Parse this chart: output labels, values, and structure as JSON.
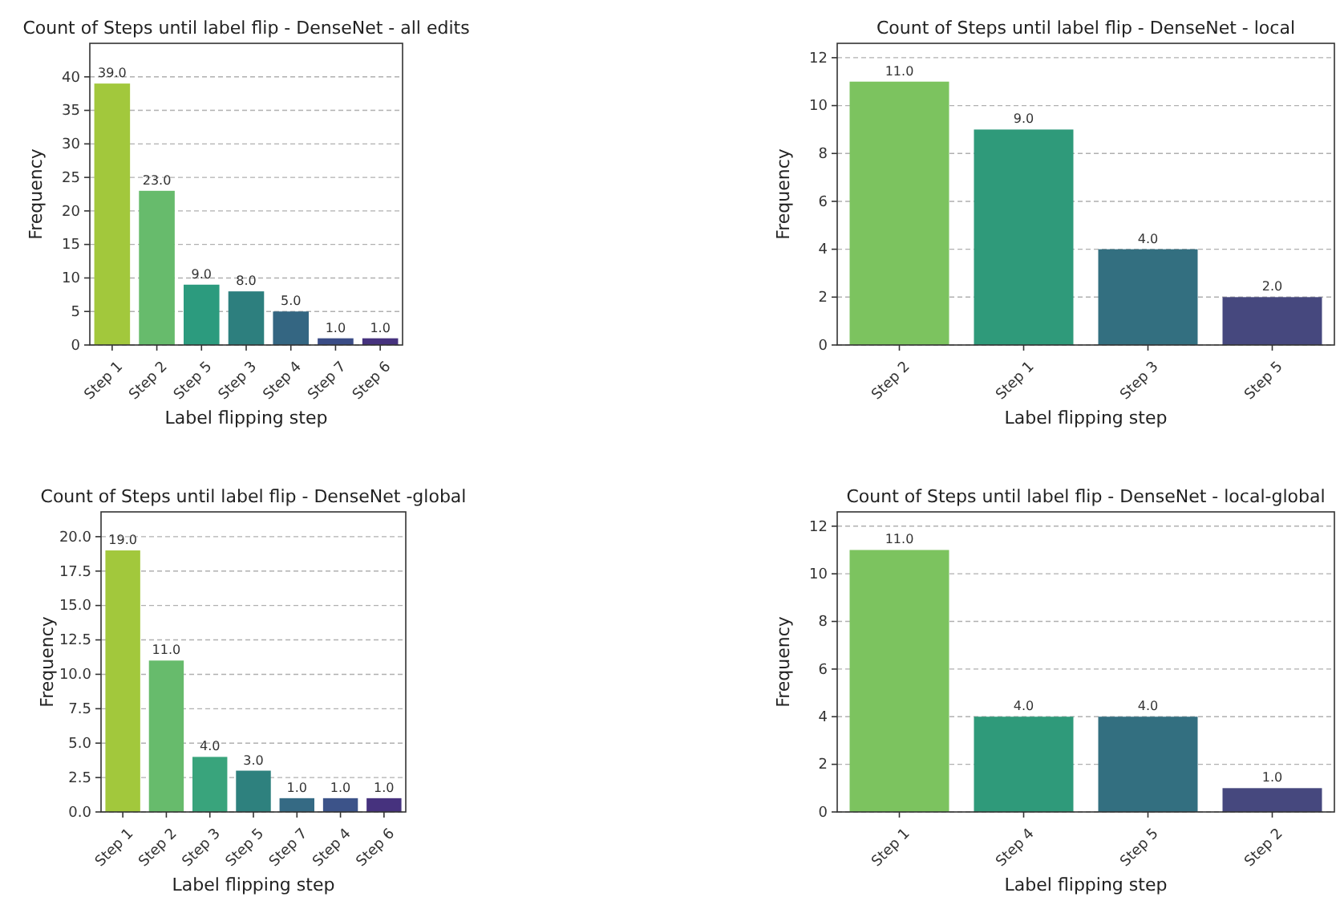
{
  "chart_data": [
    {
      "type": "bar",
      "title": "Count of Steps until label flip - DenseNet - all edits",
      "xlabel": "Label flipping step",
      "ylabel": "Frequency",
      "categories": [
        "Step 1",
        "Step 2",
        "Step 5",
        "Step 3",
        "Step 4",
        "Step 7",
        "Step 6"
      ],
      "values": [
        39,
        23,
        9,
        8,
        5,
        1,
        1
      ],
      "value_labels": [
        "39.0",
        "23.0",
        "9.0",
        "8.0",
        "5.0",
        "1.0",
        "1.0"
      ],
      "colors": [
        "#a2c83c",
        "#67bb6c",
        "#2c9b7e",
        "#2d7f7e",
        "#346682",
        "#3a4c86",
        "#46327e"
      ],
      "ylim": [
        0,
        45
      ],
      "yticks": [
        0,
        5,
        10,
        15,
        20,
        25,
        30,
        35,
        40
      ],
      "grid": "y"
    },
    {
      "type": "bar",
      "title": "Count of Steps until label flip - DenseNet - local",
      "xlabel": "Label flipping step",
      "ylabel": "Frequency",
      "categories": [
        "Step 2",
        "Step 1",
        "Step 3",
        "Step 5"
      ],
      "values": [
        11,
        9,
        4,
        2
      ],
      "value_labels": [
        "11.0",
        "9.0",
        "4.0",
        "2.0"
      ],
      "colors": [
        "#7cc35f",
        "#2f9a7a",
        "#336f80",
        "#46487e"
      ],
      "ylim": [
        0,
        12.6
      ],
      "yticks": [
        0,
        2,
        4,
        6,
        8,
        10,
        12
      ],
      "grid": "y"
    },
    {
      "type": "bar",
      "title": "Count of Steps until label flip - DenseNet -global",
      "xlabel": "Label flipping step",
      "ylabel": "Frequency",
      "categories": [
        "Step 1",
        "Step 2",
        "Step 3",
        "Step 5",
        "Step 7",
        "Step 4",
        "Step 6"
      ],
      "values": [
        19,
        11,
        4,
        3,
        1,
        1,
        1
      ],
      "value_labels": [
        "19.0",
        "11.0",
        "4.0",
        "3.0",
        "1.0",
        "1.0",
        "1.0"
      ],
      "colors": [
        "#a2c83c",
        "#67bb6c",
        "#39a47c",
        "#2e817e",
        "#356a84",
        "#3c5389",
        "#46327e"
      ],
      "ylim": [
        0,
        21.8
      ],
      "yticks": [
        {
          "value": 0,
          "label": "0.0"
        },
        {
          "value": 2.5,
          "label": "2.5"
        },
        {
          "value": 5,
          "label": "5.0"
        },
        {
          "value": 7.5,
          "label": "7.5"
        },
        {
          "value": 10,
          "label": "10.0"
        },
        {
          "value": 12.5,
          "label": "12.5"
        },
        {
          "value": 15,
          "label": "15.0"
        },
        {
          "value": 17.5,
          "label": "17.5"
        },
        {
          "value": 20,
          "label": "20.0"
        }
      ],
      "grid": "y"
    },
    {
      "type": "bar",
      "title": "Count of Steps until label flip - DenseNet - local-global",
      "xlabel": "Label flipping step",
      "ylabel": "Frequency",
      "categories": [
        "Step 1",
        "Step 4",
        "Step 5",
        "Step 2"
      ],
      "values": [
        11,
        4,
        4,
        1
      ],
      "value_labels": [
        "11.0",
        "4.0",
        "4.0",
        "1.0"
      ],
      "colors": [
        "#7cc35f",
        "#2f9a7a",
        "#336f80",
        "#46487e"
      ],
      "ylim": [
        0,
        12.6
      ],
      "yticks": [
        0,
        2,
        4,
        6,
        8,
        10,
        12
      ],
      "grid": "y"
    }
  ]
}
